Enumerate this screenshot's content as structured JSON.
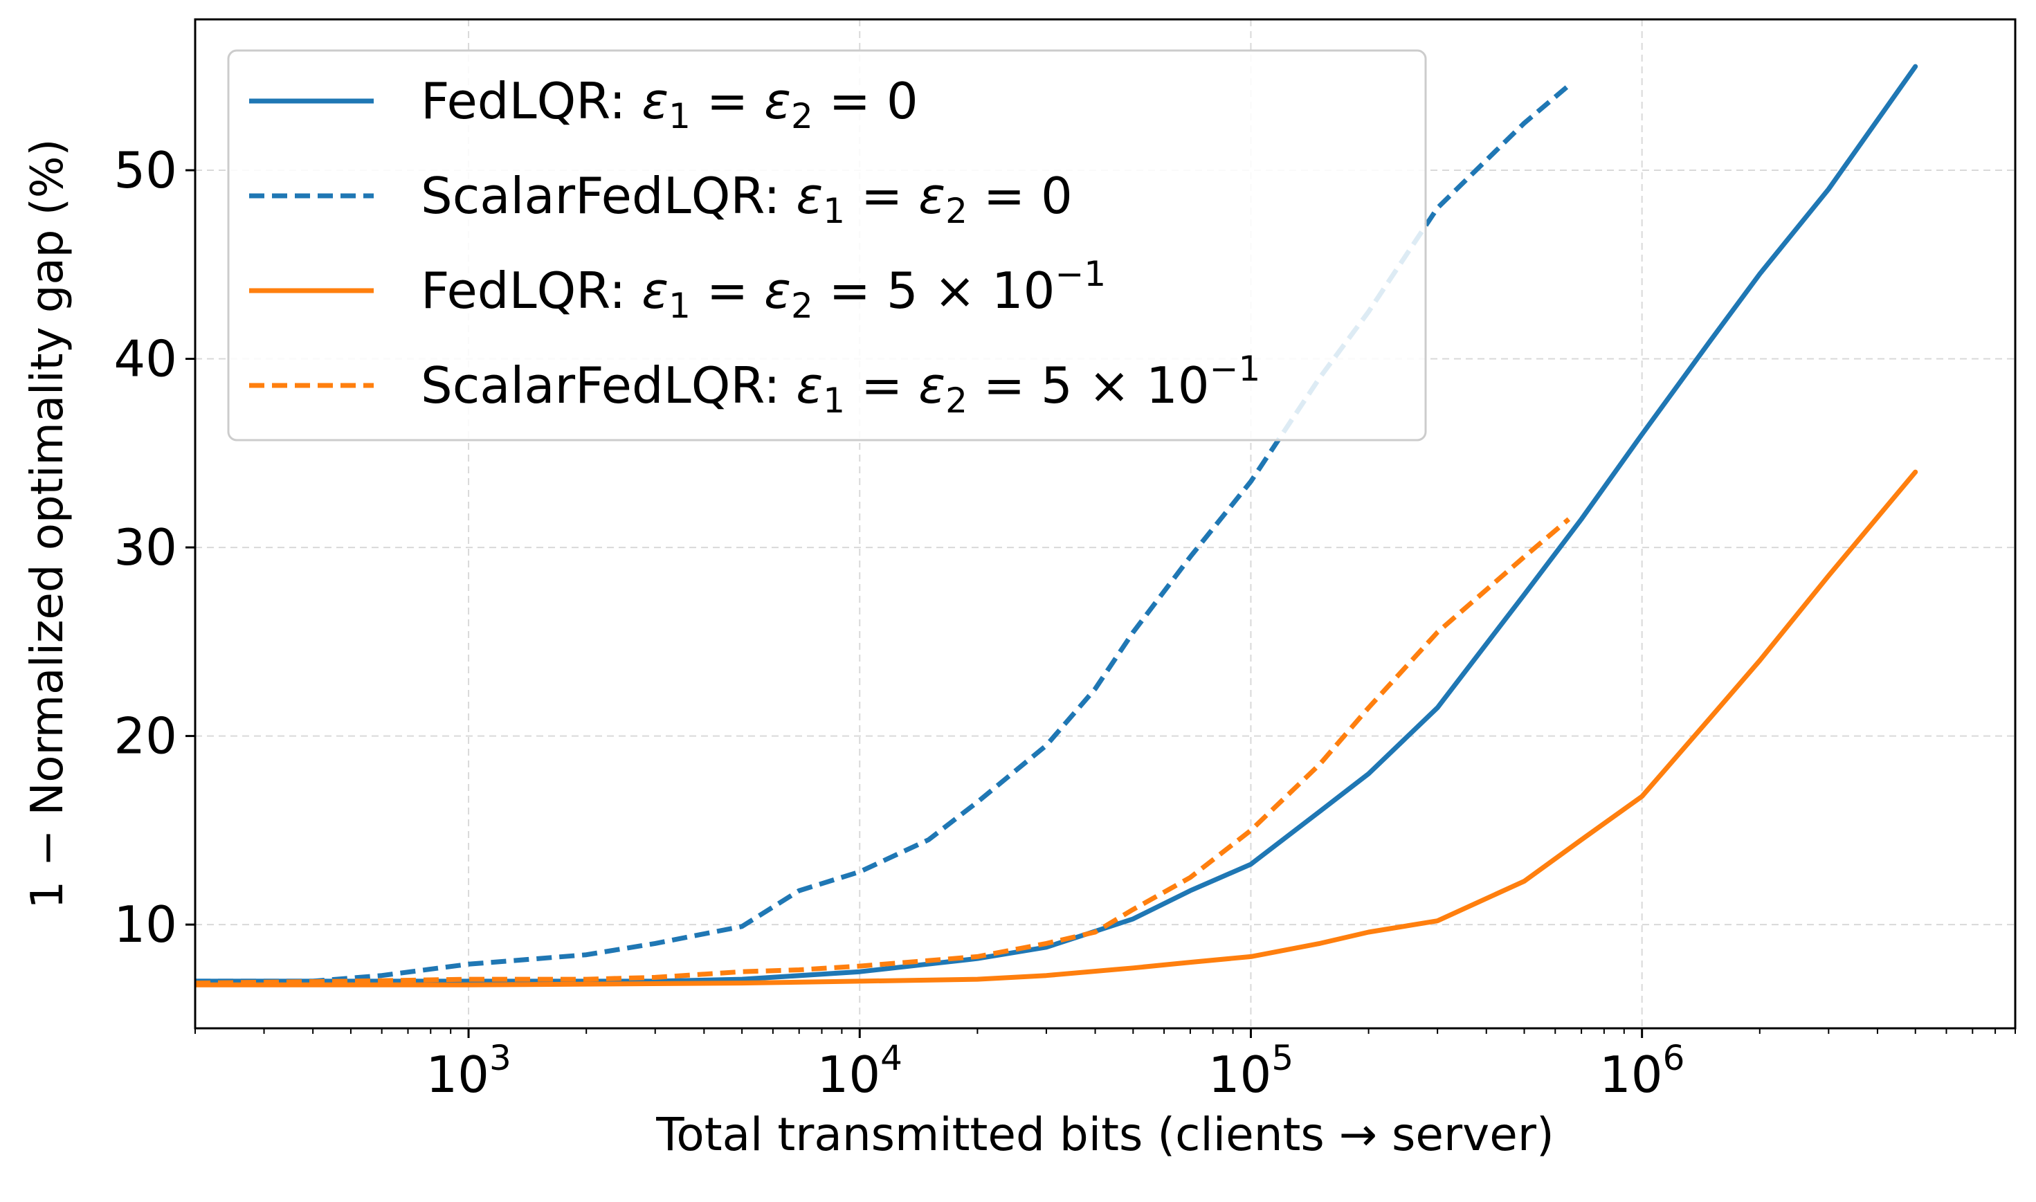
{
  "chart_data": {
    "type": "line",
    "title": "",
    "xlabel": "Total transmitted bits (clients → server)",
    "ylabel": "1 − Normalized optimality gap (%)",
    "xscale": "log",
    "xlim": [
      200,
      9000000
    ],
    "ylim": [
      4.5,
      58
    ],
    "grid": true,
    "legend_position": "top-left",
    "x_ticks": [
      {
        "base": "10",
        "exp": "3",
        "value": 1000
      },
      {
        "base": "10",
        "exp": "4",
        "value": 10000
      },
      {
        "base": "10",
        "exp": "5",
        "value": 100000
      },
      {
        "base": "10",
        "exp": "6",
        "value": 1000000
      }
    ],
    "y_ticks": [
      {
        "label": "10",
        "value": 10
      },
      {
        "label": "20",
        "value": 20
      },
      {
        "label": "30",
        "value": 30
      },
      {
        "label": "40",
        "value": 40
      },
      {
        "label": "50",
        "value": 50
      }
    ],
    "series": [
      {
        "name": "FedLQR: ε₁ = ε₂ = 0",
        "legend_prefix": "FedLQR: ",
        "legend_value": "0",
        "color": "#1f77b4",
        "style": "solid",
        "x": [
          200,
          1000,
          3000,
          5000,
          10000,
          20000,
          30000,
          50000,
          70000,
          100000,
          150000,
          200000,
          300000,
          500000,
          700000,
          1000000,
          1500000,
          2000000,
          3000000,
          5000000
        ],
        "y": [
          7.0,
          7.0,
          7.0,
          7.1,
          7.5,
          8.2,
          8.8,
          10.3,
          11.8,
          13.2,
          16.0,
          18.0,
          21.5,
          27.5,
          31.5,
          36.0,
          41.0,
          44.5,
          49.0,
          55.5
        ]
      },
      {
        "name": "ScalarFedLQR: ε₁ = ε₂ = 0",
        "legend_prefix": "ScalarFedLQR: ",
        "legend_value": "0",
        "color": "#1f77b4",
        "style": "dashed",
        "x": [
          200,
          400,
          600,
          1000,
          2000,
          3000,
          5000,
          7000,
          10000,
          15000,
          20000,
          30000,
          40000,
          50000,
          70000,
          100000,
          150000,
          200000,
          300000,
          500000,
          650000
        ],
        "y": [
          7.0,
          7.0,
          7.3,
          7.9,
          8.4,
          9.0,
          9.9,
          11.8,
          12.8,
          14.5,
          16.5,
          19.5,
          22.5,
          25.5,
          29.5,
          33.5,
          39.0,
          42.5,
          48.0,
          52.5,
          54.5
        ]
      },
      {
        "name": "FedLQR: ε₁ = ε₂ = 5 × 10⁻¹",
        "legend_prefix": "FedLQR: ",
        "legend_value": "5 × 10",
        "legend_exp": "−1",
        "color": "#ff7f0e",
        "style": "solid",
        "x": [
          200,
          1000,
          5000,
          10000,
          20000,
          30000,
          50000,
          70000,
          100000,
          150000,
          200000,
          300000,
          500000,
          700000,
          1000000,
          1500000,
          2000000,
          3000000,
          5000000
        ],
        "y": [
          6.8,
          6.8,
          6.9,
          7.0,
          7.1,
          7.3,
          7.7,
          8.0,
          8.3,
          9.0,
          9.6,
          10.2,
          12.3,
          14.5,
          16.8,
          21.0,
          24.0,
          28.5,
          34.0
        ]
      },
      {
        "name": "ScalarFedLQR: ε₁ = ε₂ = 5 × 10⁻¹",
        "legend_prefix": "ScalarFedLQR: ",
        "legend_value": "5 × 10",
        "legend_exp": "−1",
        "color": "#ff7f0e",
        "style": "dashed",
        "x": [
          200,
          500,
          1000,
          2000,
          3000,
          5000,
          7000,
          10000,
          20000,
          30000,
          40000,
          50000,
          70000,
          100000,
          150000,
          200000,
          300000,
          500000,
          650000
        ],
        "y": [
          6.9,
          7.0,
          7.1,
          7.1,
          7.2,
          7.5,
          7.6,
          7.8,
          8.3,
          9.0,
          9.6,
          10.8,
          12.5,
          15.0,
          18.5,
          21.5,
          25.5,
          29.5,
          31.5
        ]
      }
    ]
  }
}
